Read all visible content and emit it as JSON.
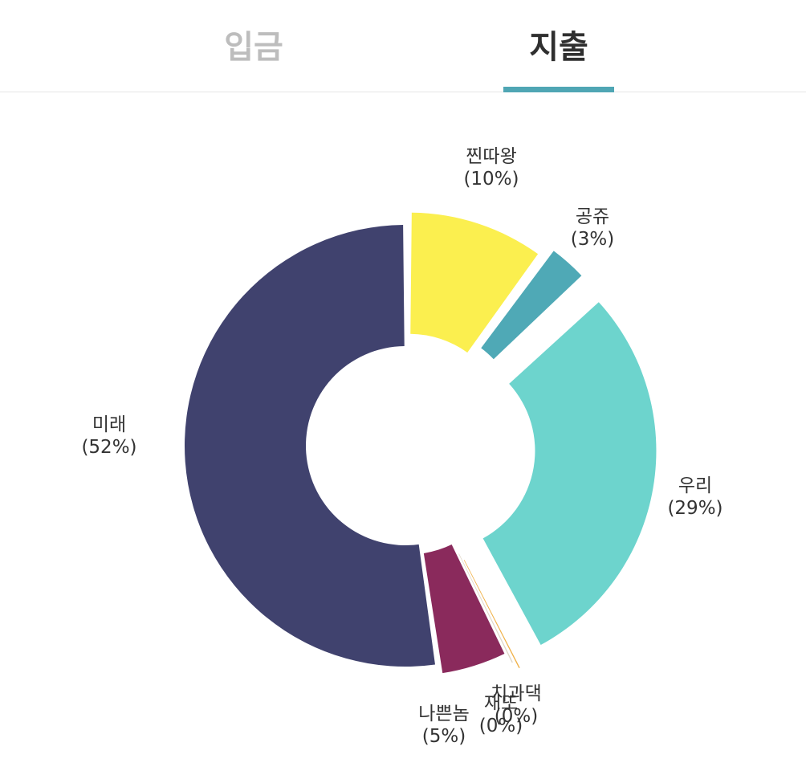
{
  "tabs": [
    {
      "label": "입금",
      "active": false
    },
    {
      "label": "지출",
      "active": true
    }
  ],
  "colors": {
    "accent": "#4fa6b4",
    "tab_inactive": "#bdbdbd",
    "tab_active": "#2f2f2f"
  },
  "chart_data": {
    "type": "pie",
    "donut": true,
    "slices": [
      {
        "label": "찐따왕",
        "percent_label": "(10%)",
        "value": 10,
        "color": "#fbef4f"
      },
      {
        "label": "공쥬",
        "percent_label": "(3%)",
        "value": 3,
        "color": "#4fa9b6"
      },
      {
        "label": "우리",
        "percent_label": "(29%)",
        "value": 29,
        "color": "#6dd4cd"
      },
      {
        "label": "치과댁",
        "percent_label": "(0%)",
        "value": 0.25,
        "color": "#f0b24a"
      },
      {
        "label": "재또",
        "percent_label": "(0%)",
        "value": 0.15,
        "color": "#e0d7c8"
      },
      {
        "label": "나쁜놈",
        "percent_label": "(5%)",
        "value": 5,
        "color": "#8a2a5c"
      },
      {
        "label": "미래",
        "percent_label": "(52%)",
        "value": 52,
        "color": "#40426e"
      }
    ]
  }
}
